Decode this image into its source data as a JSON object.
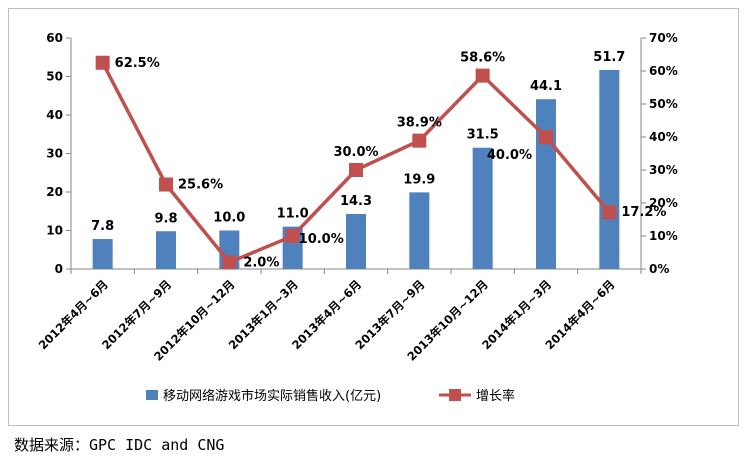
{
  "chart_data": {
    "type": "bar",
    "categories": [
      "2012年4月~6月",
      "2012年7月~9月",
      "2012年10月~12月",
      "2013年1月~3月",
      "2013年4月~6月",
      "2013年7月~9月",
      "2013年10月~12月",
      "2014年1月~3月",
      "2014年4月~6月"
    ],
    "series": [
      {
        "name": "移动网络游戏市场实际销售收入(亿元)",
        "type": "bar",
        "axis": "left",
        "values": [
          7.8,
          9.8,
          10.0,
          11.0,
          14.3,
          19.9,
          31.5,
          44.1,
          51.7
        ],
        "labels": [
          "7.8",
          "9.8",
          "10.0",
          "11.0",
          "14.3",
          "19.9",
          "31.5",
          "44.1",
          "51.7"
        ],
        "color": "#4f81bd"
      },
      {
        "name": "增长率",
        "type": "line",
        "axis": "right",
        "values": [
          62.5,
          25.6,
          2.0,
          10.0,
          30.0,
          38.9,
          58.6,
          40.0,
          17.2
        ],
        "labels": [
          "62.5%",
          "25.6%",
          "2.0%",
          "10.0%",
          "30.0%",
          "38.9%",
          "58.6%",
          "40.0%",
          "17.2%"
        ],
        "color": "#c0504d"
      }
    ],
    "ylim_left": [
      0,
      60
    ],
    "yticks_left": [
      "0",
      "10",
      "20",
      "30",
      "40",
      "50",
      "60"
    ],
    "ylim_right": [
      0,
      70
    ],
    "yticks_right": [
      "0%",
      "10%",
      "20%",
      "30%",
      "40%",
      "50%",
      "60%",
      "70%"
    ],
    "grid": false,
    "legend_position": "bottom"
  },
  "source_note": "数据来源：GPC IDC and CNG"
}
